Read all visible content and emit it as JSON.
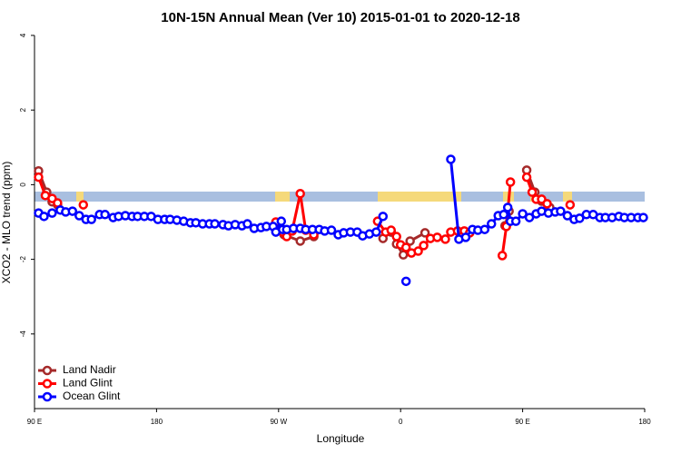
{
  "chart_data": {
    "type": "line",
    "title": "10N-15N Annual Mean (Ver 10)   2015-01-01 to 2020-12-18",
    "x_label": "Longitude",
    "y_label": "XCO2 - MLO trend (ppm)",
    "xlim": [
      90,
      540
    ],
    "ylim": [
      -6,
      4
    ],
    "xticks": [
      {
        "value": 90,
        "label": "90 E"
      },
      {
        "value": 180,
        "label": "180"
      },
      {
        "value": 270,
        "label": "90 W"
      },
      {
        "value": 360,
        "label": "0"
      },
      {
        "value": 450,
        "label": "90 E"
      },
      {
        "value": 540,
        "label": "180"
      }
    ],
    "yticks": [
      -4,
      -2,
      0,
      2,
      4
    ],
    "legend": "bottomleft",
    "series": [
      {
        "name": "Land Nadir",
        "color": "#a52a2a",
        "x": [
          93,
          99,
          103,
          107,
          null,
          268,
          274,
          286,
          296,
          null,
          347,
          353,
          357,
          362,
          367,
          378,
          null,
          437,
          440,
          null,
          453,
          459,
          464,
          470
        ],
        "values": [
          0.37,
          -0.2,
          -0.46,
          -0.54,
          null,
          -1.15,
          -1.34,
          -1.51,
          -1.39,
          null,
          -1.44,
          -1.27,
          -1.59,
          -1.88,
          -1.51,
          -1.29,
          null,
          -1.1,
          -0.71,
          null,
          0.39,
          -0.2,
          -0.44,
          -0.61
        ]
      },
      {
        "name": "Land Glint",
        "color": "#ff0000",
        "x": [
          93,
          98,
          103,
          107,
          null,
          126,
          null,
          268,
          273,
          276,
          280,
          286,
          290,
          296,
          null,
          343,
          349,
          353,
          357,
          360,
          364,
          368,
          373,
          377,
          382,
          387,
          393,
          397,
          402,
          407,
          411,
          null,
          435,
          438,
          441,
          null,
          453,
          457,
          460,
          464,
          468,
          null,
          485
        ],
        "values": [
          0.2,
          -0.29,
          -0.37,
          -0.49,
          null,
          -0.54,
          null,
          -1.0,
          -1.27,
          -1.39,
          -1.24,
          -0.24,
          -1.22,
          -1.34,
          null,
          -0.98,
          -1.27,
          -1.22,
          -1.39,
          -1.61,
          -1.68,
          -1.83,
          -1.78,
          -1.63,
          -1.44,
          -1.41,
          -1.46,
          -1.27,
          -1.24,
          -1.24,
          -1.29,
          null,
          -1.9,
          -1.12,
          0.07,
          null,
          0.2,
          -0.2,
          -0.39,
          -0.39,
          -0.51,
          null,
          -0.54
        ]
      },
      {
        "name": "Ocean Glint",
        "color": "#0000ff",
        "x": [
          93,
          97,
          103,
          109,
          113,
          118,
          123,
          128,
          132,
          138,
          142,
          148,
          152,
          157,
          162,
          166,
          171,
          176,
          181,
          186,
          190,
          195,
          200,
          205,
          209,
          214,
          219,
          223,
          229,
          233,
          238,
          243,
          247,
          252,
          257,
          261,
          266,
          268,
          272,
          273,
          276,
          281,
          286,
          290,
          295,
          300,
          304,
          309,
          314,
          318,
          323,
          328,
          332,
          337,
          342,
          347,
          null,
          364,
          null,
          397,
          403,
          408,
          413,
          417,
          422,
          427,
          432,
          436,
          439,
          441,
          445,
          450,
          455,
          460,
          464,
          469,
          474,
          478,
          483,
          488,
          492,
          497,
          502,
          507,
          511,
          516,
          521,
          525,
          530,
          535,
          539
        ],
        "values": [
          -0.76,
          -0.85,
          -0.76,
          -0.68,
          -0.73,
          -0.71,
          -0.83,
          -0.93,
          -0.93,
          -0.8,
          -0.8,
          -0.88,
          -0.85,
          -0.83,
          -0.85,
          -0.85,
          -0.85,
          -0.85,
          -0.93,
          -0.93,
          -0.93,
          -0.95,
          -0.98,
          -1.02,
          -1.02,
          -1.05,
          -1.05,
          -1.05,
          -1.07,
          -1.1,
          -1.07,
          -1.1,
          -1.05,
          -1.17,
          -1.15,
          -1.12,
          -1.12,
          -1.27,
          -0.98,
          -1.2,
          -1.2,
          -1.17,
          -1.17,
          -1.2,
          -1.2,
          -1.2,
          -1.24,
          -1.22,
          -1.34,
          -1.29,
          -1.27,
          -1.27,
          -1.37,
          -1.32,
          -1.27,
          -0.85,
          null,
          -2.59,
          null,
          0.68,
          -1.46,
          -1.41,
          -1.2,
          -1.22,
          -1.2,
          -1.05,
          -0.83,
          -0.8,
          -0.61,
          -0.98,
          -0.98,
          -0.78,
          -0.88,
          -0.78,
          -0.71,
          -0.76,
          -0.73,
          -0.71,
          -0.83,
          -0.93,
          -0.9,
          -0.8,
          -0.8,
          -0.88,
          -0.88,
          -0.88,
          -0.85,
          -0.88,
          -0.88,
          -0.88,
          -0.88
        ]
      }
    ]
  }
}
